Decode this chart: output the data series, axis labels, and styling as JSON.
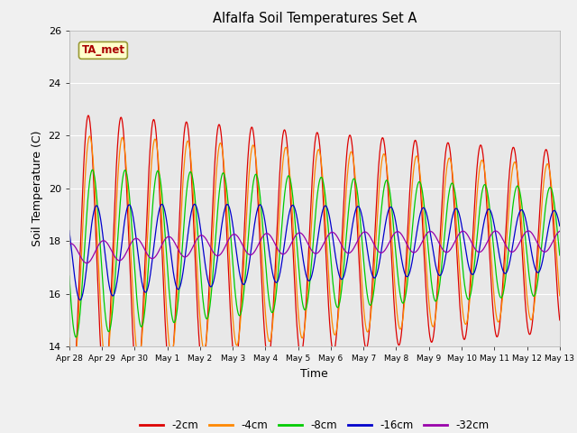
{
  "title": "Alfalfa Soil Temperatures Set A",
  "xlabel": "Time",
  "ylabel": "Soil Temperature (C)",
  "ylim": [
    14,
    26
  ],
  "yticks": [
    14,
    16,
    18,
    20,
    22,
    24,
    26
  ],
  "date_labels": [
    "Apr 28",
    "Apr 29",
    "Apr 30",
    "May 1",
    "May 2",
    "May 3",
    "May 4",
    "May 5",
    "May 6",
    "May 7",
    "May 8",
    "May 9",
    "May 10",
    "May 11",
    "May 12",
    "May 13"
  ],
  "series_colors": {
    "-2cm": "#dd0000",
    "-4cm": "#ff8800",
    "-8cm": "#00cc00",
    "-16cm": "#0000cc",
    "-32cm": "#9900aa"
  },
  "annotation_text": "TA_met",
  "annotation_color": "#aa0000",
  "annotation_bg": "#ffffcc",
  "plot_bg": "#e8e8e8",
  "fig_bg": "#f0f0f0",
  "grid_color": "#ffffff"
}
